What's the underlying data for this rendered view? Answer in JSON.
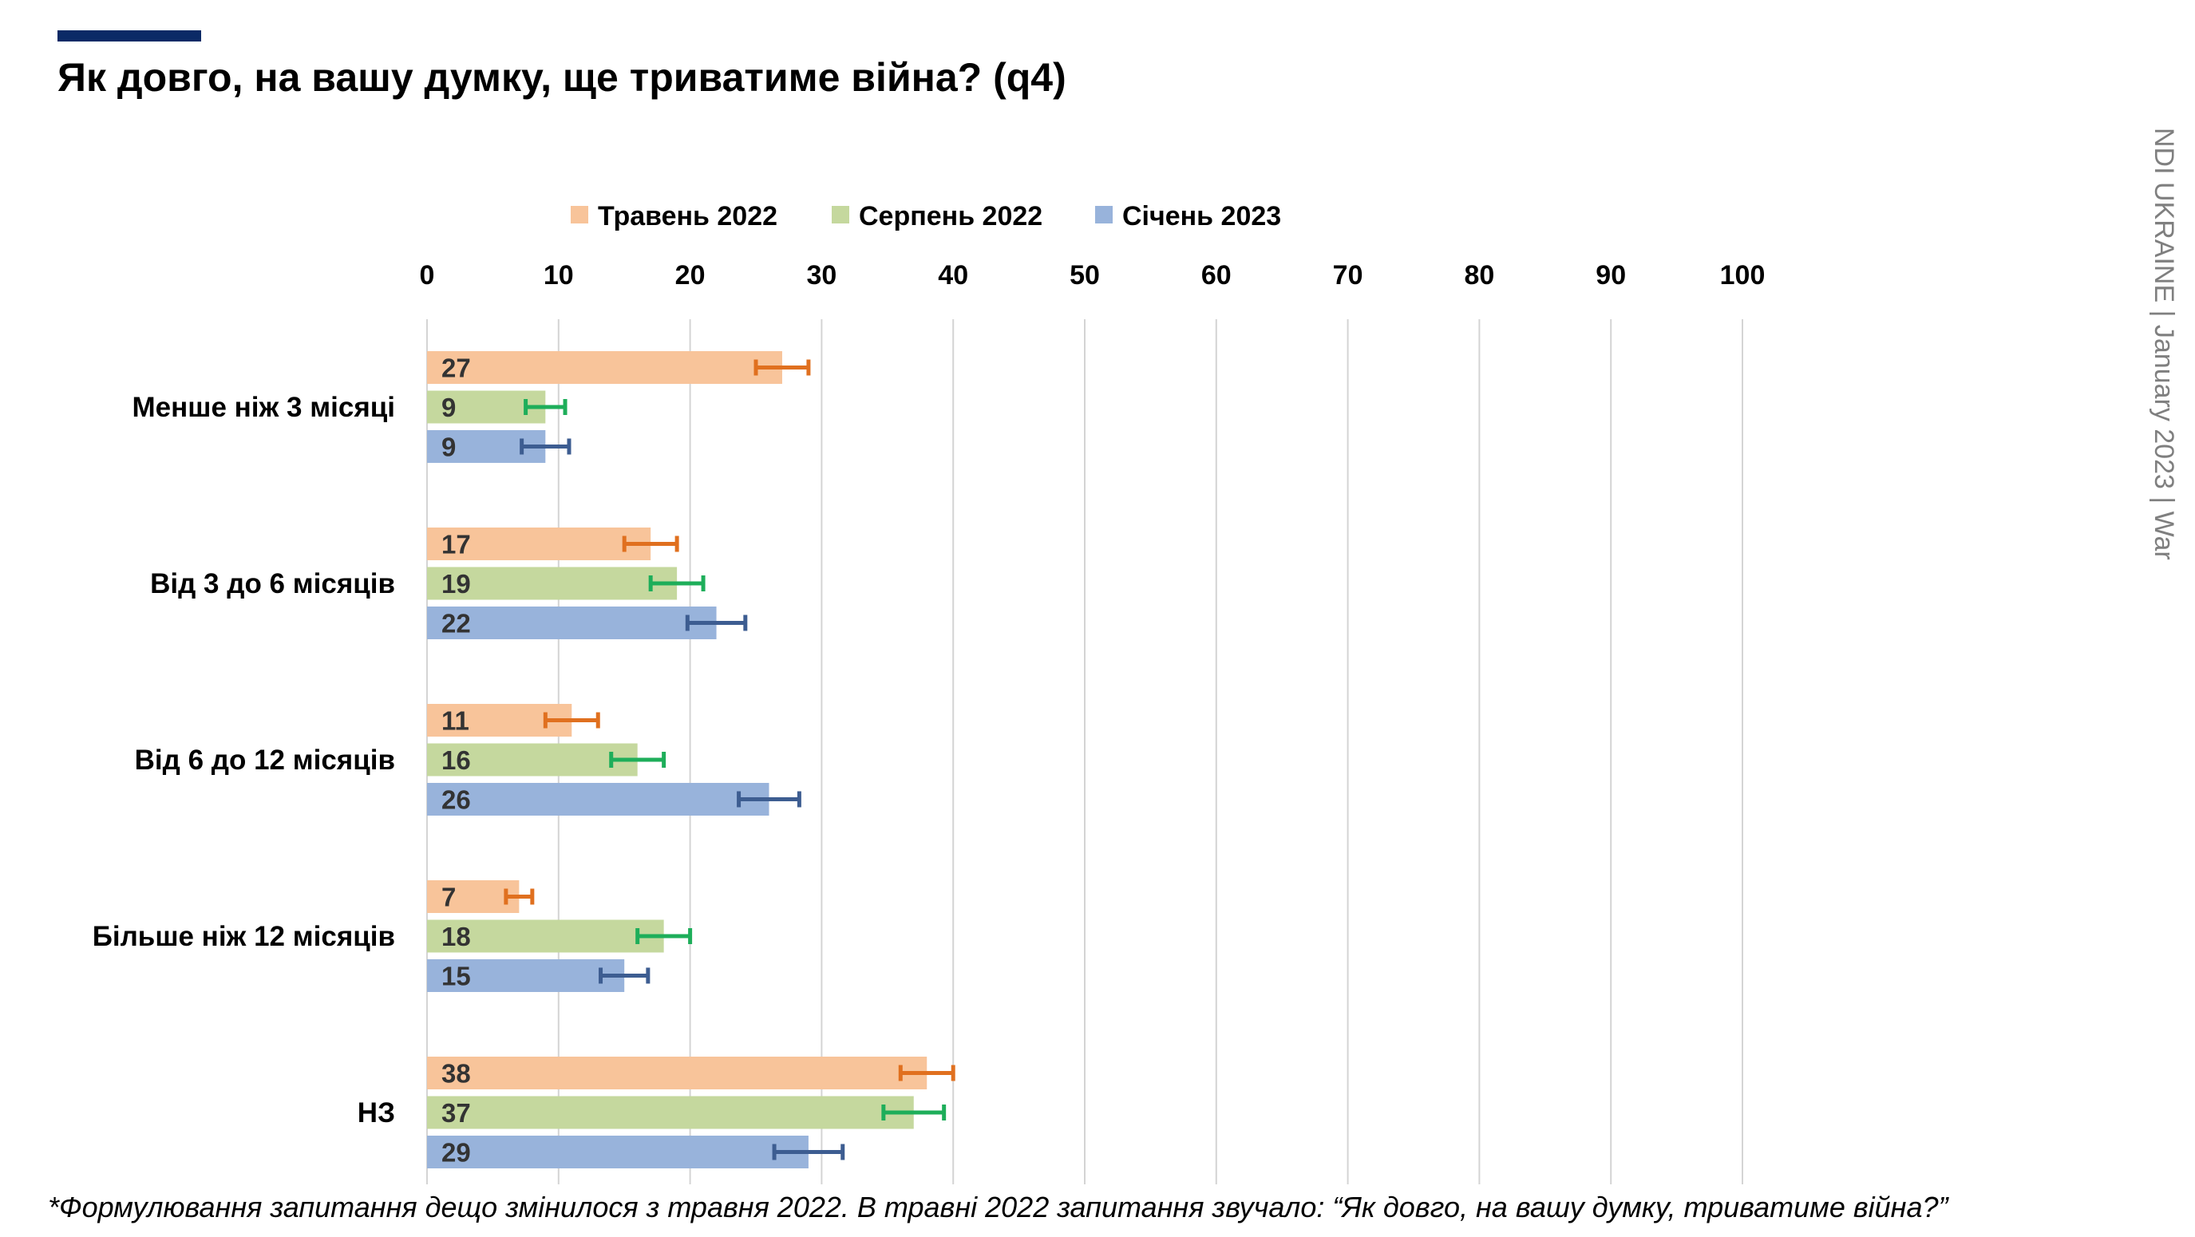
{
  "header": {
    "title": "Як довго, на вашу думку, ще триватиме війна? (q4)",
    "side_note": "NDI UKRAINE | January 2023 | War",
    "footnote": "*Формулювання запитання дещо змінилося з травня 2022. В травні 2022 запитання звучало: “Як довго, на вашу думку, триватиме війна?”"
  },
  "chart_data": {
    "type": "bar",
    "orientation": "horizontal",
    "categories": [
      "Менше ніж 3 місяці",
      "Від 3 до 6 місяців",
      "Від 6 до 12 місяців",
      "Більше ніж 12 місяців",
      "НЗ"
    ],
    "series": [
      {
        "name": "Травень 2022",
        "color": "#f8c49a",
        "error_color": "#e0701f",
        "values": [
          27,
          17,
          11,
          7,
          38
        ],
        "error": [
          2,
          2,
          2,
          1,
          2
        ]
      },
      {
        "name": "Серпень 2022",
        "color": "#c5d89e",
        "error_color": "#1eae5a",
        "values": [
          9,
          19,
          16,
          18,
          37
        ],
        "error": [
          1.5,
          2,
          2,
          2,
          2.3
        ]
      },
      {
        "name": "Січень 2023",
        "color": "#98b3db",
        "error_color": "#3d5d91",
        "values": [
          9,
          22,
          26,
          15,
          29
        ],
        "error": [
          1.8,
          2.2,
          2.3,
          1.8,
          2.6
        ]
      }
    ],
    "xlim": [
      0,
      100
    ],
    "ticks": [
      "0",
      "10",
      "20",
      "30",
      "40",
      "50",
      "60",
      "70",
      "80",
      "90",
      "100"
    ],
    "grid": true,
    "legend_position": "top"
  }
}
